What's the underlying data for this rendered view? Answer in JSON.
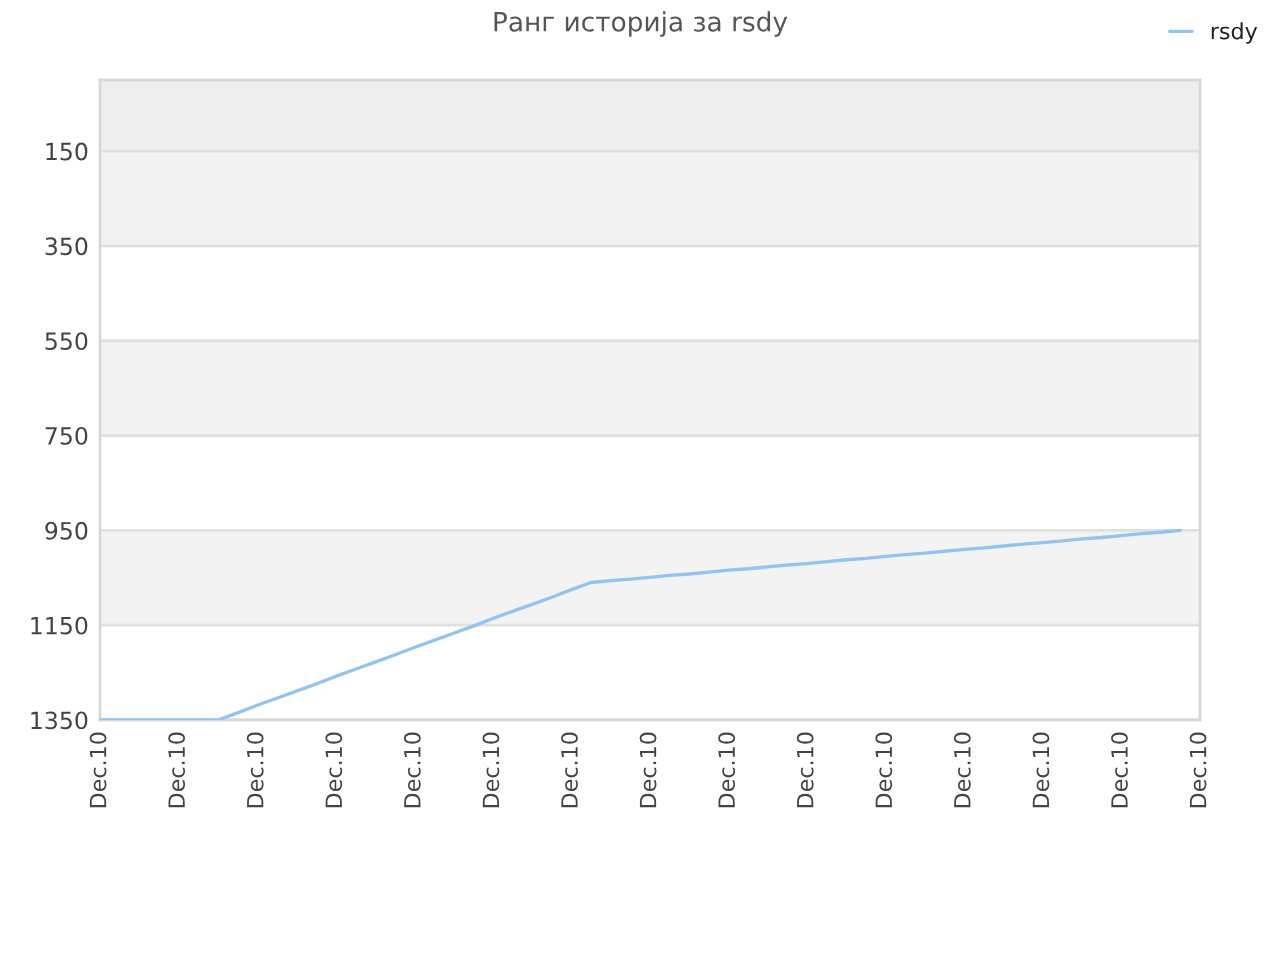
{
  "chart_data": {
    "type": "line",
    "title": "Ранг историја за rsdy",
    "categories": [
      "Dec.10",
      null,
      null,
      null,
      "Dec.10",
      null,
      null,
      null,
      "Dec.10",
      null,
      null,
      null,
      "Dec.10",
      null,
      null,
      null,
      "Dec.10",
      null,
      null,
      null,
      "Dec.10",
      null,
      null,
      null,
      "Dec.10",
      null,
      null,
      null,
      "Dec.10",
      null,
      null,
      null,
      "Dec.10",
      null,
      null,
      null,
      "Dec.10",
      null,
      null,
      null,
      "Dec.10",
      null,
      null,
      null,
      "Dec.10",
      null,
      null,
      null,
      "Dec.10",
      null,
      null,
      null,
      "Dec.10",
      null,
      null,
      null,
      "Dec.10"
    ],
    "series": [
      {
        "name": "rsdy",
        "color": "#92c4f2",
        "values": [
          1350,
          1350,
          1350,
          1350,
          1350,
          1350,
          1350,
          1335,
          1319,
          1304,
          1289,
          1274,
          1258,
          1243,
          1228,
          1213,
          1197,
          1182,
          1167,
          1152,
          1136,
          1121,
          1106,
          1091,
          1075,
          1060,
          1056,
          1053,
          1049,
          1045,
          1042,
          1038,
          1034,
          1031,
          1027,
          1023,
          1020,
          1016,
          1012,
          1009,
          1005,
          1001,
          998,
          994,
          990,
          987,
          983,
          979,
          976,
          972,
          968,
          965,
          961,
          957,
          954,
          950,
          null
        ]
      }
    ],
    "ylim": [
      1350,
      0
    ],
    "yticks": [
      150,
      350,
      550,
      750,
      950,
      1150,
      1350
    ],
    "bands": [
      {
        "axis": "y",
        "from": 0,
        "to": 150,
        "label": null,
        "color": "#eeeeee"
      },
      {
        "axis": "y",
        "from": 150,
        "to": 350,
        "label": null,
        "color": "#f3f3f3"
      },
      {
        "axis": "y",
        "from": 550,
        "to": 750,
        "label": null,
        "color": "#f3f3f3"
      },
      {
        "axis": "y",
        "from": 950,
        "to": 1150,
        "label": null,
        "color": "#f3f3f3"
      }
    ],
    "grid": "y",
    "legend": "top right",
    "marker": "none",
    "line_style": "solid"
  }
}
